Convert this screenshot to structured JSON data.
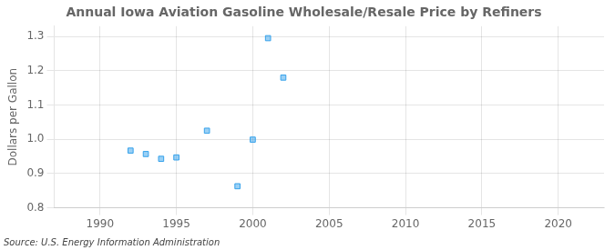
{
  "chart_data": {
    "type": "scatter",
    "title": "Annual Iowa Aviation Gasoline Wholesale/Resale Price by Refiners",
    "ylabel": "Dollars per Gallon",
    "annotation": "Source: U.S. Energy Information Administration",
    "x": [
      1992,
      1993,
      1994,
      1995,
      1997,
      1999,
      2000,
      2001,
      2002
    ],
    "values": [
      0.967,
      0.957,
      0.943,
      0.947,
      1.025,
      0.863,
      0.999,
      1.295,
      1.18
    ],
    "xlim": [
      1987,
      2023
    ],
    "ylim": [
      0.8,
      1.33
    ],
    "xticks": [
      1990,
      1995,
      2000,
      2005,
      2010,
      2015,
      2020
    ],
    "yticks": [
      0.8,
      0.9,
      {
        "value": 1.0,
        "label": "1.0"
      },
      1.1,
      1.2,
      1.3
    ],
    "marker": "square",
    "grid": true
  }
}
